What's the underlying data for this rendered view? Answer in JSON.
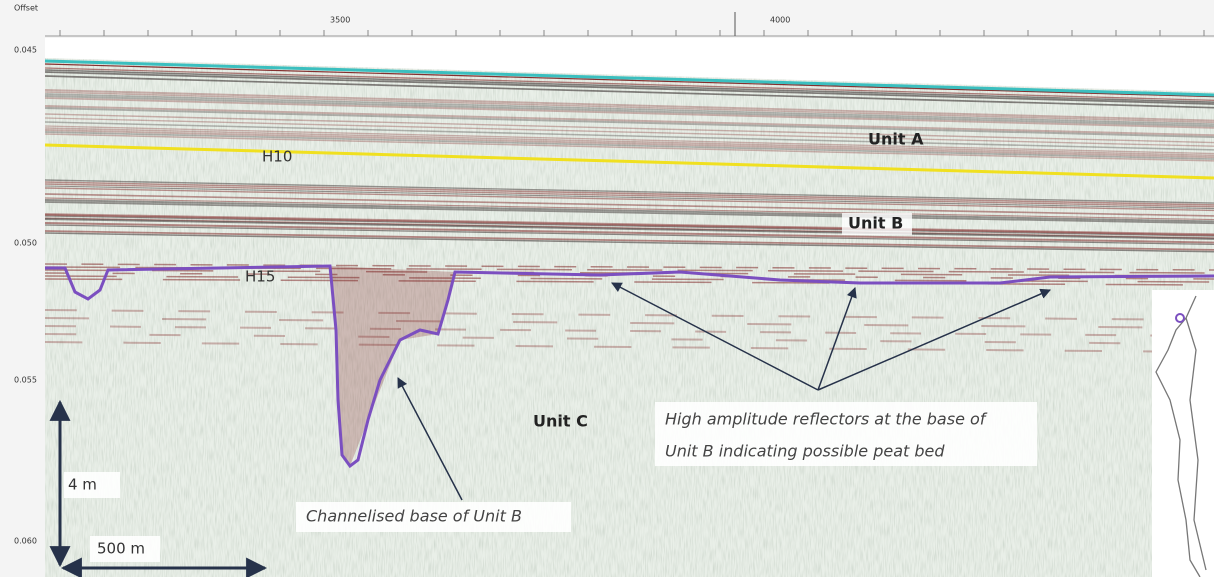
{
  "axis": {
    "offset_label": "Offset",
    "x_ticks": [
      "3500",
      "4000"
    ],
    "y_ticks": [
      "0.045",
      "0.050",
      "0.055",
      "0.060"
    ]
  },
  "annotations": {
    "unit_a": "Unit A",
    "h10": "H10",
    "unit_b": "Unit B",
    "h15": "H15",
    "unit_c": "Unit C",
    "reflectors": [
      "High amplitude reflectors at the base of",
      "Unit B indicating possible peat bed"
    ],
    "channel": "Channelised base of Unit B"
  },
  "scale": {
    "vertical": "4 m",
    "horizontal": "500 m"
  }
}
